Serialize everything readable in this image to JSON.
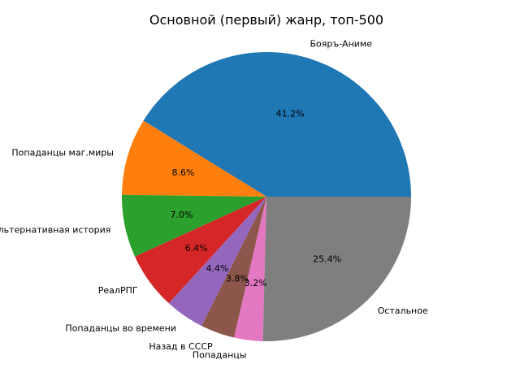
{
  "chart_data": {
    "type": "pie",
    "title": "Основной (первый) жанр, топ-500",
    "slices": [
      {
        "label": "Бояръ-Аниме",
        "value": 41.2,
        "pct_label": "41.2%",
        "color": "#1f77b4"
      },
      {
        "label": "Попаданцы маг.миры",
        "value": 8.6,
        "pct_label": "8.6%",
        "color": "#ff7f0e"
      },
      {
        "label": "Альтернативная история",
        "value": 7.0,
        "pct_label": "7.0%",
        "color": "#2ca02c"
      },
      {
        "label": "РеалРПГ",
        "value": 6.4,
        "pct_label": "6.4%",
        "color": "#d62728"
      },
      {
        "label": "Попаданцы во времени",
        "value": 4.4,
        "pct_label": "4.4%",
        "color": "#9467bd"
      },
      {
        "label": "Назад в СССР",
        "value": 3.8,
        "pct_label": "3.8%",
        "color": "#8c564b"
      },
      {
        "label": "Попаданцы",
        "value": 3.2,
        "pct_label": "3.2%",
        "color": "#e377c2"
      },
      {
        "label": "Остальное",
        "value": 25.4,
        "pct_label": "25.4%",
        "color": "#7f7f7f"
      }
    ]
  }
}
